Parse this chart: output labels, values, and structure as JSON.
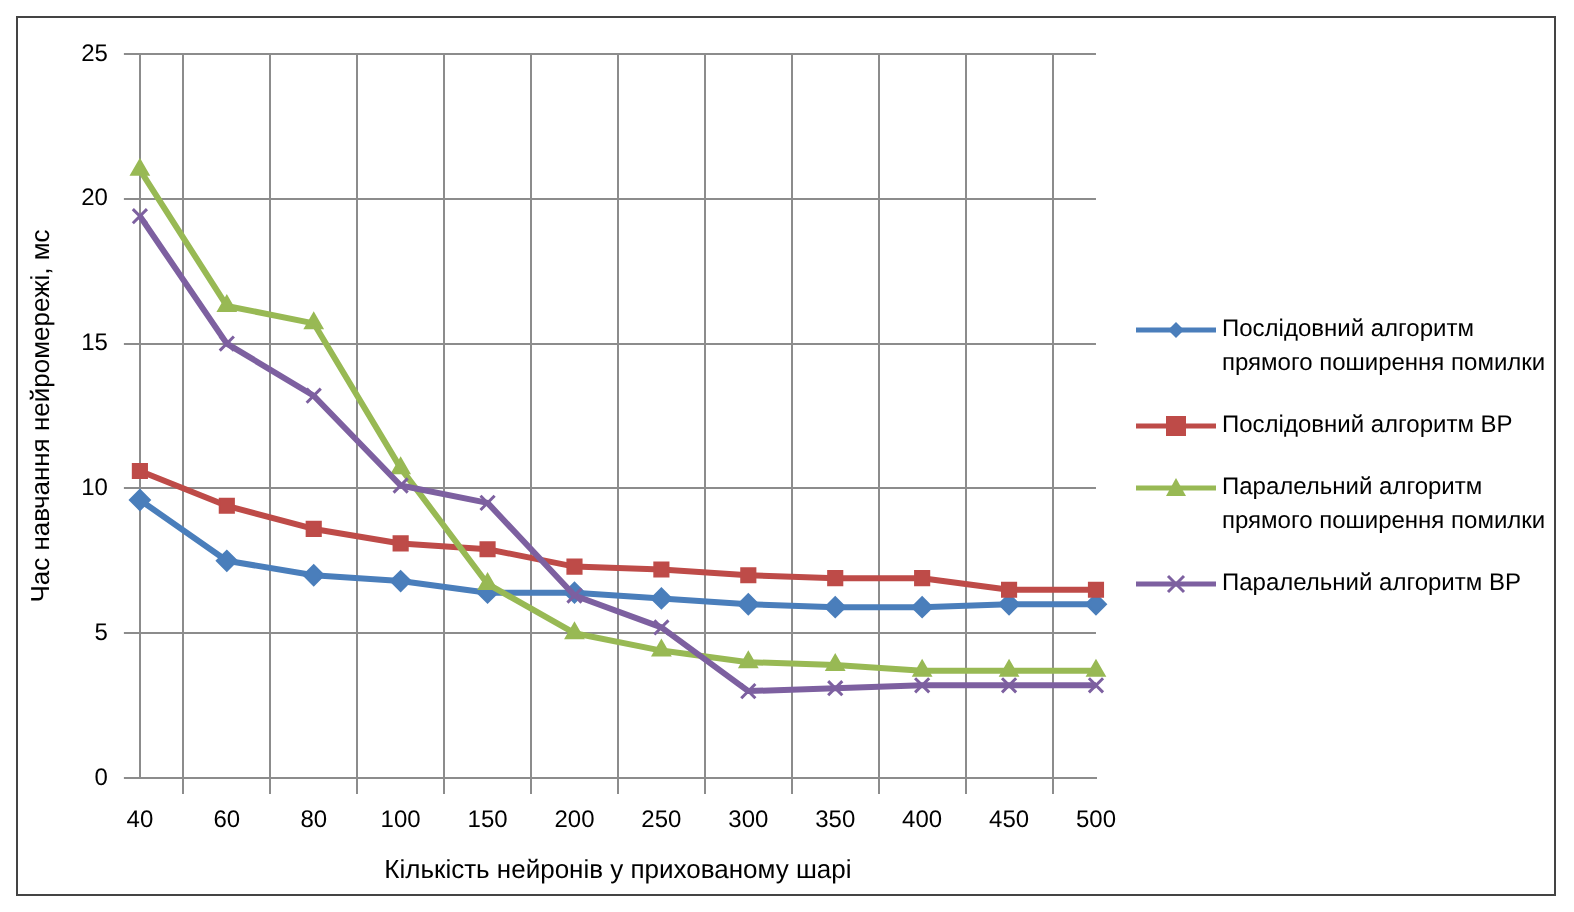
{
  "chart_data": {
    "type": "line",
    "xlabel": "Кількість нейронів у прихованому шарі",
    "ylabel": "Час навчання нейромережі, мс",
    "categories": [
      "40",
      "60",
      "80",
      "100",
      "150",
      "200",
      "250",
      "300",
      "350",
      "400",
      "450",
      "500"
    ],
    "series": [
      {
        "name": "Послідовний алгоритм прямого поширення помилки",
        "color": "#4a7ebb",
        "marker": "diamond",
        "values": [
          9.6,
          7.5,
          7.0,
          6.8,
          6.4,
          6.4,
          6.2,
          6.0,
          5.9,
          5.9,
          6.0,
          6.0
        ]
      },
      {
        "name": "Послідовний алгоритм ВР",
        "color": "#be4b48",
        "marker": "square",
        "values": [
          10.6,
          9.4,
          8.6,
          8.1,
          7.9,
          7.3,
          7.2,
          7.0,
          6.9,
          6.9,
          6.5,
          6.5
        ]
      },
      {
        "name": "Паралельний алгоритм прямого поширення помилки",
        "color": "#98b954",
        "marker": "triangle",
        "values": [
          21.0,
          16.3,
          15.7,
          10.7,
          6.7,
          5.0,
          4.4,
          4.0,
          3.9,
          3.7,
          3.7,
          3.7
        ]
      },
      {
        "name": "Паралельний алгоритм ВР",
        "color": "#7d60a0",
        "marker": "cross",
        "values": [
          19.4,
          15.0,
          13.2,
          10.1,
          9.5,
          6.3,
          5.2,
          3.0,
          3.1,
          3.2,
          3.2,
          3.2
        ]
      }
    ],
    "ylim": [
      0,
      25
    ],
    "yticks": [
      0,
      5,
      10,
      15,
      20,
      25
    ],
    "grid": true,
    "legend": "right"
  }
}
